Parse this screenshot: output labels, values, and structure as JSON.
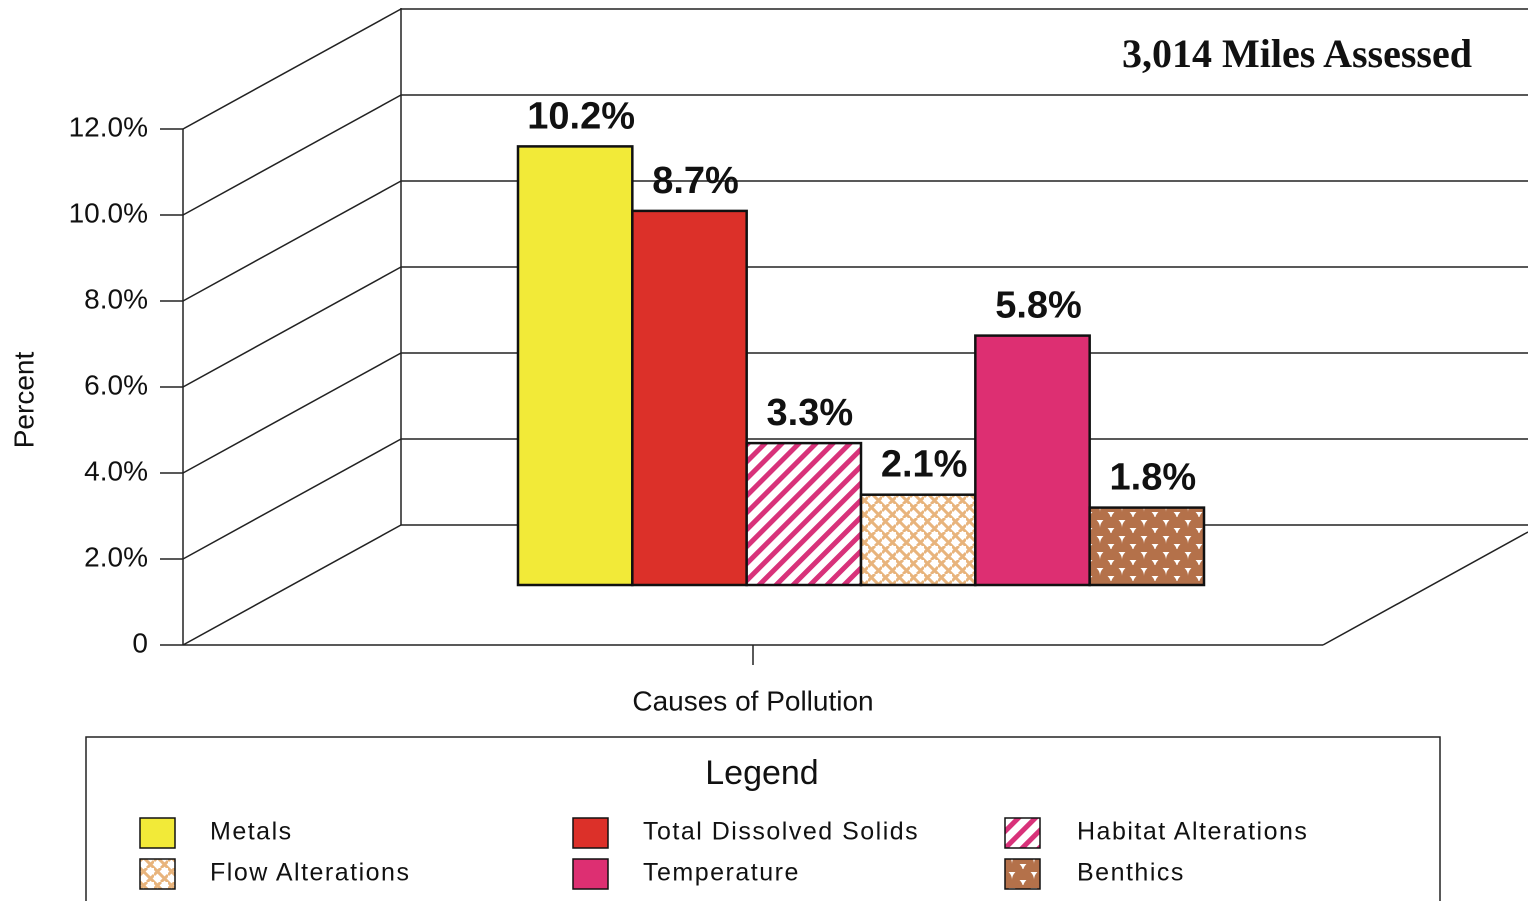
{
  "chart_data": {
    "type": "bar",
    "title": "3,014 Miles Assessed",
    "y_label": "Percent",
    "x_label": "Causes of Pollution",
    "legend_title": "Legend",
    "categories": [
      null
    ],
    "series": [
      {
        "name": "Metals",
        "color": "#f2ea38",
        "pattern": "solid",
        "values": [
          10.2
        ],
        "value_labels": [
          "10.2%"
        ]
      },
      {
        "name": "Total Dissolved Solids",
        "color": "#dc3029",
        "pattern": "solid",
        "values": [
          8.7
        ],
        "value_labels": [
          "8.7%"
        ]
      },
      {
        "name": "Habitat Alterations",
        "color": "#d8327a",
        "pattern": "diagonal",
        "values": [
          3.3
        ],
        "value_labels": [
          "3.3%"
        ]
      },
      {
        "name": "Flow Alterations",
        "color": "#e8b47c",
        "pattern": "weave",
        "values": [
          2.1
        ],
        "value_labels": [
          "2.1%"
        ]
      },
      {
        "name": "Temperature",
        "color": "#dd2f72",
        "pattern": "solid",
        "values": [
          5.8
        ],
        "value_labels": [
          "5.8%"
        ]
      },
      {
        "name": "Benthics",
        "color": "#b4714a",
        "pattern": "scallop",
        "values": [
          1.8
        ],
        "value_labels": [
          "1.8%"
        ]
      }
    ],
    "ylim": [
      0,
      12
    ],
    "yticks": [
      0,
      {
        "value": 2,
        "label": "2.0%"
      },
      {
        "value": 4,
        "label": "4.0%"
      },
      {
        "value": 6,
        "label": "6.0%"
      },
      {
        "value": 8,
        "label": "8.0%"
      },
      {
        "value": 10,
        "label": "10.0%"
      },
      {
        "value": 12,
        "label": "12.0%"
      }
    ],
    "grid": true
  }
}
